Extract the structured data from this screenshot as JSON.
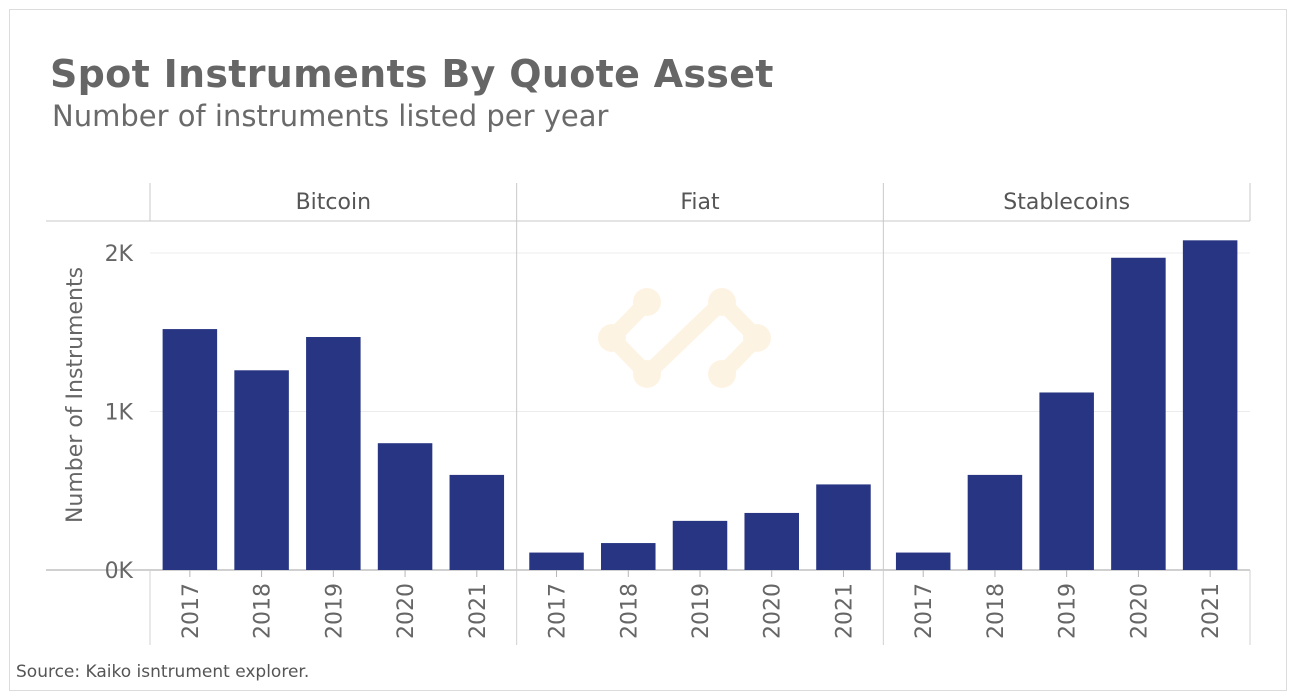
{
  "title": "Spot Instruments By Quote Asset",
  "subtitle": "Number of instruments listed per year",
  "source": "Source: Kaiko isntrument explorer.",
  "chart_data": {
    "type": "bar",
    "title": "Spot Instruments By Quote Asset",
    "subtitle": "Number of instruments listed per year",
    "ylabel": "Number of Instruments",
    "xlabel": "",
    "ylim": [
      0,
      2100
    ],
    "yticks": [
      {
        "value": 0,
        "label": "0K"
      },
      {
        "value": 1000,
        "label": "1K"
      },
      {
        "value": 2000,
        "label": "2K"
      }
    ],
    "bar_color": "#283583",
    "grid": true,
    "categories": [
      "2017",
      "2018",
      "2019",
      "2020",
      "2021"
    ],
    "facets": [
      {
        "name": "Bitcoin",
        "values": [
          1520,
          1260,
          1470,
          800,
          600
        ]
      },
      {
        "name": "Fiat",
        "values": [
          110,
          170,
          310,
          360,
          540
        ]
      },
      {
        "name": "Stablecoins",
        "values": [
          110,
          600,
          1120,
          1970,
          2080
        ]
      }
    ]
  }
}
